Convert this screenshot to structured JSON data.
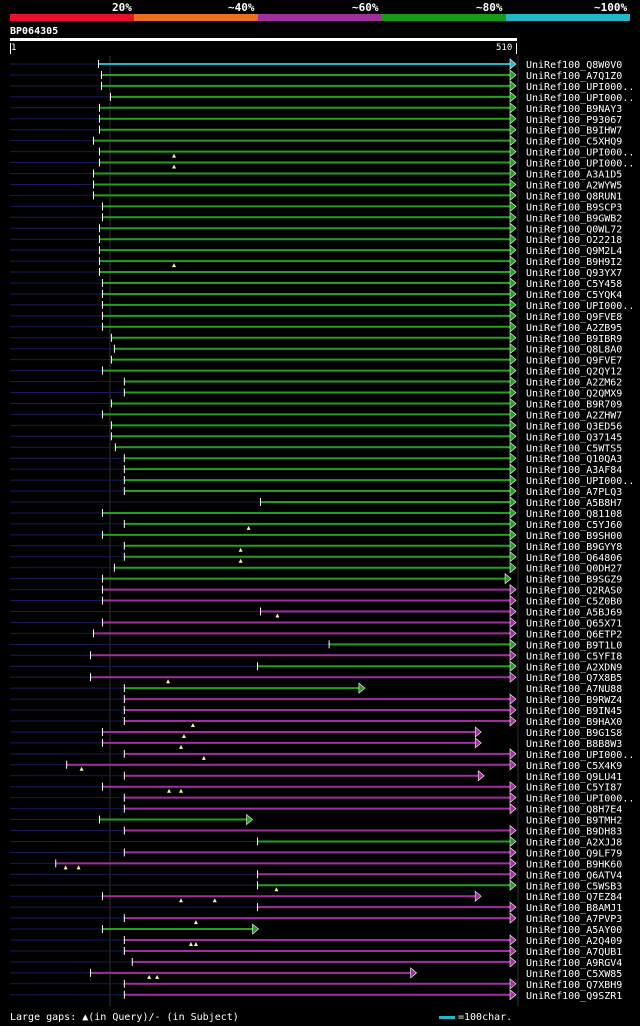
{
  "identity_scale": {
    "labels": [
      "20%",
      "~40%",
      "~60%",
      "~80%",
      "~100%"
    ],
    "colors": [
      "#e8102e",
      "#e87020",
      "#a030a0",
      "#199a1a",
      "#20b8c8"
    ]
  },
  "query": {
    "id": "BP064305",
    "start": "1",
    "end": "510",
    "length": 510
  },
  "colors": {
    "cyan": "#20b8c8",
    "green": "#22a01e",
    "magenta": "#a030a0",
    "query": "#1a1a5a",
    "gap": "#fff4a0"
  },
  "hits": [
    {
      "label": "UniRef100_Q8W0V0",
      "s": 90,
      "e": 510,
      "c": "cyan",
      "arrow": true,
      "gaps": []
    },
    {
      "label": "UniRef100_A7Q1Z0",
      "s": 93,
      "e": 510,
      "c": "green",
      "arrow": true,
      "gaps": []
    },
    {
      "label": "UniRef100_UPI000..",
      "s": 93,
      "e": 510,
      "c": "green",
      "arrow": true,
      "gaps": []
    },
    {
      "label": "UniRef100_UPI000..",
      "s": 102,
      "e": 510,
      "c": "green",
      "arrow": true,
      "gaps": []
    },
    {
      "label": "UniRef100_B9NAY3",
      "s": 91,
      "e": 510,
      "c": "green",
      "arrow": true,
      "gaps": []
    },
    {
      "label": "UniRef100_P93067",
      "s": 91,
      "e": 510,
      "c": "green",
      "arrow": true,
      "gaps": []
    },
    {
      "label": "UniRef100_B9IHW7",
      "s": 91,
      "e": 510,
      "c": "green",
      "arrow": true,
      "gaps": []
    },
    {
      "label": "UniRef100_C5XHQ9",
      "s": 85,
      "e": 510,
      "c": "green",
      "arrow": true,
      "gaps": []
    },
    {
      "label": "UniRef100_UPI000..",
      "s": 91,
      "e": 510,
      "c": "green",
      "arrow": true,
      "gaps": [
        166
      ]
    },
    {
      "label": "UniRef100_UPI000..",
      "s": 91,
      "e": 510,
      "c": "green",
      "arrow": true,
      "gaps": [
        166
      ]
    },
    {
      "label": "UniRef100_A3A1D5",
      "s": 85,
      "e": 510,
      "c": "green",
      "arrow": true,
      "gaps": []
    },
    {
      "label": "UniRef100_A2WYW5",
      "s": 85,
      "e": 510,
      "c": "green",
      "arrow": true,
      "gaps": []
    },
    {
      "label": "UniRef100_Q8RUN1",
      "s": 85,
      "e": 510,
      "c": "green",
      "arrow": true,
      "gaps": []
    },
    {
      "label": "UniRef100_B9SCP3",
      "s": 94,
      "e": 510,
      "c": "green",
      "arrow": true,
      "gaps": []
    },
    {
      "label": "UniRef100_B9GWB2",
      "s": 94,
      "e": 510,
      "c": "green",
      "arrow": true,
      "gaps": []
    },
    {
      "label": "UniRef100_Q0WL72",
      "s": 91,
      "e": 510,
      "c": "green",
      "arrow": true,
      "gaps": []
    },
    {
      "label": "UniRef100_O22218",
      "s": 91,
      "e": 510,
      "c": "green",
      "arrow": true,
      "gaps": []
    },
    {
      "label": "UniRef100_Q9M2L4",
      "s": 91,
      "e": 510,
      "c": "green",
      "arrow": true,
      "gaps": []
    },
    {
      "label": "UniRef100_B9H9I2",
      "s": 91,
      "e": 510,
      "c": "green",
      "arrow": true,
      "gaps": [
        166
      ]
    },
    {
      "label": "UniRef100_Q93YX7",
      "s": 91,
      "e": 510,
      "c": "green",
      "arrow": true,
      "gaps": []
    },
    {
      "label": "UniRef100_C5Y458",
      "s": 94,
      "e": 510,
      "c": "green",
      "arrow": true,
      "gaps": []
    },
    {
      "label": "UniRef100_C5YQK4",
      "s": 94,
      "e": 510,
      "c": "green",
      "arrow": true,
      "gaps": []
    },
    {
      "label": "UniRef100_UPI000..",
      "s": 94,
      "e": 510,
      "c": "green",
      "arrow": true,
      "gaps": []
    },
    {
      "label": "UniRef100_Q9FVE8",
      "s": 94,
      "e": 510,
      "c": "green",
      "arrow": true,
      "gaps": []
    },
    {
      "label": "UniRef100_A2ZB95",
      "s": 94,
      "e": 510,
      "c": "green",
      "arrow": true,
      "gaps": []
    },
    {
      "label": "UniRef100_B9IBR9",
      "s": 103,
      "e": 510,
      "c": "green",
      "arrow": true,
      "gaps": []
    },
    {
      "label": "UniRef100_Q8L8A0",
      "s": 106,
      "e": 510,
      "c": "green",
      "arrow": true,
      "gaps": []
    },
    {
      "label": "UniRef100_Q9FVE7",
      "s": 103,
      "e": 510,
      "c": "green",
      "arrow": true,
      "gaps": []
    },
    {
      "label": "UniRef100_Q2QY12",
      "s": 94,
      "e": 510,
      "c": "green",
      "arrow": true,
      "gaps": []
    },
    {
      "label": "UniRef100_A2ZM62",
      "s": 116,
      "e": 510,
      "c": "green",
      "arrow": true,
      "gaps": []
    },
    {
      "label": "UniRef100_Q2QMX9",
      "s": 116,
      "e": 510,
      "c": "green",
      "arrow": true,
      "gaps": []
    },
    {
      "label": "UniRef100_B9R709",
      "s": 103,
      "e": 510,
      "c": "green",
      "arrow": true,
      "gaps": []
    },
    {
      "label": "UniRef100_A2ZHW7",
      "s": 94,
      "e": 510,
      "c": "green",
      "arrow": true,
      "gaps": []
    },
    {
      "label": "UniRef100_Q3ED56",
      "s": 103,
      "e": 510,
      "c": "green",
      "arrow": true,
      "gaps": []
    },
    {
      "label": "UniRef100_Q37145",
      "s": 103,
      "e": 510,
      "c": "green",
      "arrow": true,
      "gaps": []
    },
    {
      "label": "UniRef100_C5WTS5",
      "s": 107,
      "e": 510,
      "c": "green",
      "arrow": true,
      "gaps": []
    },
    {
      "label": "UniRef100_Q10QA3",
      "s": 116,
      "e": 510,
      "c": "green",
      "arrow": true,
      "gaps": []
    },
    {
      "label": "UniRef100_A3AF84",
      "s": 116,
      "e": 510,
      "c": "green",
      "arrow": true,
      "gaps": []
    },
    {
      "label": "UniRef100_UPI000..",
      "s": 116,
      "e": 510,
      "c": "green",
      "arrow": true,
      "gaps": []
    },
    {
      "label": "UniRef100_A7PLQ3",
      "s": 116,
      "e": 510,
      "c": "green",
      "arrow": true,
      "gaps": []
    },
    {
      "label": "UniRef100_A5B8H7",
      "s": 253,
      "e": 510,
      "c": "green",
      "arrow": true,
      "gaps": []
    },
    {
      "label": "UniRef100_Q81108",
      "s": 94,
      "e": 510,
      "c": "green",
      "arrow": true,
      "gaps": []
    },
    {
      "label": "UniRef100_C5YJ60",
      "s": 116,
      "e": 510,
      "c": "green",
      "arrow": true,
      "gaps": [
        241
      ]
    },
    {
      "label": "UniRef100_B9SH00",
      "s": 94,
      "e": 510,
      "c": "green",
      "arrow": true,
      "gaps": []
    },
    {
      "label": "UniRef100_B9GYY8",
      "s": 116,
      "e": 510,
      "c": "green",
      "arrow": true,
      "gaps": [
        233
      ]
    },
    {
      "label": "UniRef100_Q64806",
      "s": 116,
      "e": 510,
      "c": "green",
      "arrow": true,
      "gaps": [
        233
      ]
    },
    {
      "label": "UniRef100_Q0DH27",
      "s": 106,
      "e": 510,
      "c": "green",
      "arrow": true,
      "gaps": []
    },
    {
      "label": "UniRef100_B9SGZ9",
      "s": 94,
      "e": 505,
      "c": "green",
      "arrow": true,
      "gaps": []
    },
    {
      "label": "UniRef100_Q2RAS0",
      "s": 94,
      "e": 510,
      "c": "magenta",
      "arrow": true,
      "gaps": []
    },
    {
      "label": "UniRef100_C5Z0B0",
      "s": 94,
      "e": 510,
      "c": "magenta",
      "arrow": true,
      "gaps": []
    },
    {
      "label": "UniRef100_A5BJ69",
      "s": 253,
      "e": 510,
      "c": "magenta",
      "arrow": true,
      "gaps": [
        270
      ]
    },
    {
      "label": "UniRef100_Q65X71",
      "s": 94,
      "e": 510,
      "c": "magenta",
      "arrow": true,
      "gaps": []
    },
    {
      "label": "UniRef100_Q6ETP2",
      "s": 85,
      "e": 510,
      "c": "magenta",
      "arrow": true,
      "gaps": []
    },
    {
      "label": "UniRef100_B9T1L0",
      "s": 322,
      "e": 510,
      "c": "green",
      "arrow": true,
      "gaps": []
    },
    {
      "label": "UniRef100_C5YFI8",
      "s": 82,
      "e": 510,
      "c": "magenta",
      "arrow": true,
      "gaps": []
    },
    {
      "label": "UniRef100_A2XDN9",
      "s": 250,
      "e": 510,
      "c": "green",
      "arrow": true,
      "gaps": []
    },
    {
      "label": "UniRef100_Q7X8B5",
      "s": 82,
      "e": 510,
      "c": "magenta",
      "arrow": true,
      "gaps": [
        160
      ]
    },
    {
      "label": "UniRef100_A7NU88",
      "s": 116,
      "e": 358,
      "c": "green",
      "arrow": true,
      "gaps": []
    },
    {
      "label": "UniRef100_B9RWZ4",
      "s": 116,
      "e": 510,
      "c": "magenta",
      "arrow": true,
      "gaps": []
    },
    {
      "label": "UniRef100_B9IN45",
      "s": 116,
      "e": 510,
      "c": "magenta",
      "arrow": true,
      "gaps": []
    },
    {
      "label": "UniRef100_B9HAX0",
      "s": 116,
      "e": 510,
      "c": "magenta",
      "arrow": true,
      "gaps": [
        185
      ]
    },
    {
      "label": "UniRef100_B9G1S8",
      "s": 94,
      "e": 475,
      "c": "magenta",
      "arrow": true,
      "gaps": [
        176
      ]
    },
    {
      "label": "UniRef100_B8B8W3",
      "s": 94,
      "e": 475,
      "c": "magenta",
      "arrow": true,
      "gaps": [
        173
      ]
    },
    {
      "label": "UniRef100_UPI000..",
      "s": 116,
      "e": 510,
      "c": "magenta",
      "arrow": true,
      "gaps": [
        196
      ]
    },
    {
      "label": "UniRef100_C5X4K9",
      "s": 58,
      "e": 510,
      "c": "magenta",
      "arrow": true,
      "gaps": [
        73
      ]
    },
    {
      "label": "UniRef100_Q9LU41",
      "s": 116,
      "e": 478,
      "c": "magenta",
      "arrow": true,
      "gaps": []
    },
    {
      "label": "UniRef100_C5YI87",
      "s": 94,
      "e": 510,
      "c": "magenta",
      "arrow": true,
      "gaps": [
        161,
        173
      ]
    },
    {
      "label": "UniRef100_UPI000..",
      "s": 116,
      "e": 510,
      "c": "magenta",
      "arrow": true,
      "gaps": []
    },
    {
      "label": "UniRef100_Q8H7E4",
      "s": 116,
      "e": 510,
      "c": "magenta",
      "arrow": true,
      "gaps": []
    },
    {
      "label": "UniRef100_B9TMH2",
      "s": 91,
      "e": 245,
      "c": "green",
      "arrow": true,
      "gaps": []
    },
    {
      "label": "UniRef100_B9DH83",
      "s": 116,
      "e": 510,
      "c": "magenta",
      "arrow": true,
      "gaps": []
    },
    {
      "label": "UniRef100_A2XJJ8",
      "s": 250,
      "e": 510,
      "c": "green",
      "arrow": true,
      "gaps": []
    },
    {
      "label": "UniRef100_Q9LF79",
      "s": 116,
      "e": 510,
      "c": "magenta",
      "arrow": true,
      "gaps": []
    },
    {
      "label": "UniRef100_B9HK60",
      "s": 47,
      "e": 510,
      "c": "magenta",
      "arrow": true,
      "gaps": [
        57,
        70
      ]
    },
    {
      "label": "UniRef100_Q6ATV4",
      "s": 250,
      "e": 510,
      "c": "magenta",
      "arrow": true,
      "gaps": []
    },
    {
      "label": "UniRef100_C5WSB3",
      "s": 250,
      "e": 510,
      "c": "green",
      "arrow": true,
      "gaps": [
        269
      ]
    },
    {
      "label": "UniRef100_Q7EZ84",
      "s": 94,
      "e": 475,
      "c": "magenta",
      "arrow": true,
      "gaps": [
        173,
        207
      ]
    },
    {
      "label": "UniRef100_B8AMJ1",
      "s": 250,
      "e": 510,
      "c": "magenta",
      "arrow": true,
      "gaps": []
    },
    {
      "label": "UniRef100_A7PVP3",
      "s": 116,
      "e": 510,
      "c": "magenta",
      "arrow": true,
      "gaps": [
        188
      ]
    },
    {
      "label": "UniRef100_A5AY00",
      "s": 94,
      "e": 251,
      "c": "green",
      "arrow": true,
      "gaps": []
    },
    {
      "label": "UniRef100_A2Q409",
      "s": 116,
      "e": 510,
      "c": "magenta",
      "arrow": true,
      "gaps": [
        183,
        188
      ]
    },
    {
      "label": "UniRef100_A7QUB1",
      "s": 116,
      "e": 510,
      "c": "magenta",
      "arrow": true,
      "gaps": []
    },
    {
      "label": "UniRef100_A9RGV4",
      "s": 124,
      "e": 510,
      "c": "magenta",
      "arrow": true,
      "gaps": []
    },
    {
      "label": "UniRef100_C5XW85",
      "s": 82,
      "e": 410,
      "c": "magenta",
      "arrow": true,
      "gaps": [
        141,
        149
      ]
    },
    {
      "label": "UniRef100_Q7XBH9",
      "s": 116,
      "e": 510,
      "c": "magenta",
      "arrow": true,
      "gaps": []
    },
    {
      "label": "UniRef100_Q9SZR1",
      "s": 116,
      "e": 510,
      "c": "magenta",
      "arrow": true,
      "gaps": []
    }
  ],
  "footer": {
    "legend": "Large gaps: ▲(in Query)/- (in Subject)",
    "scale_label": "=100char."
  }
}
